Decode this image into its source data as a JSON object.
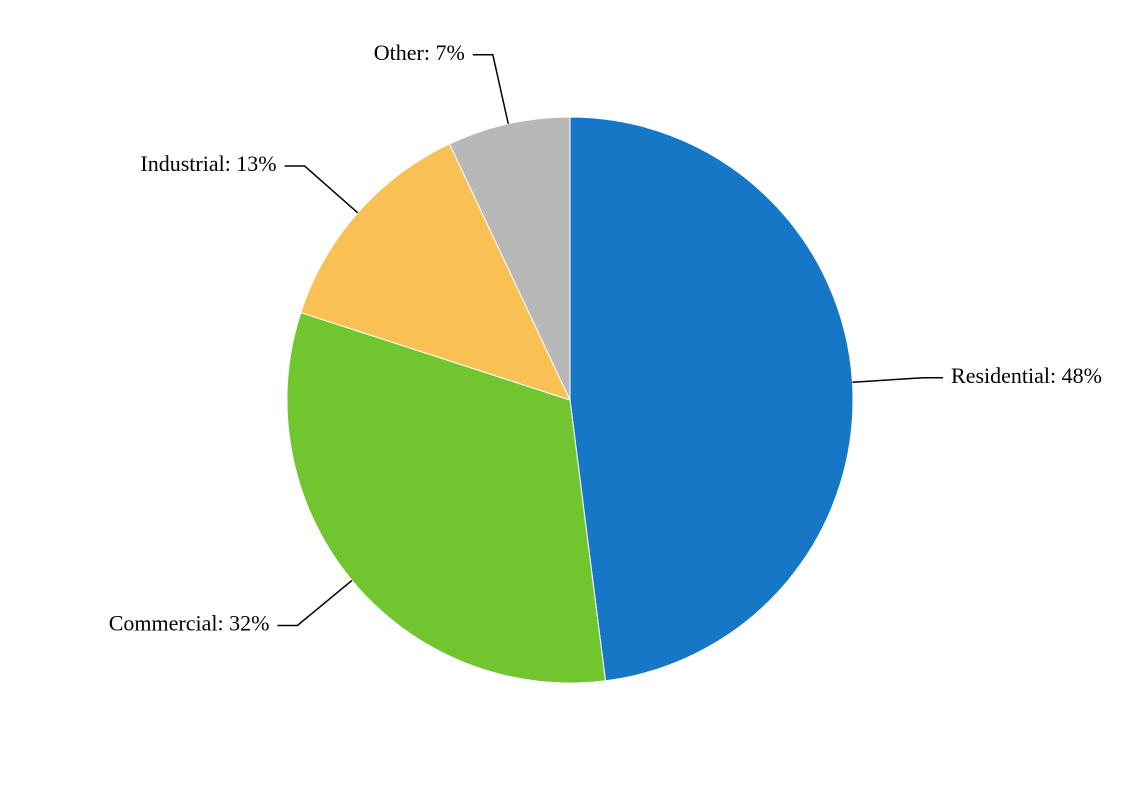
{
  "chart_data": {
    "type": "pie",
    "values": [
      48,
      32,
      13,
      7
    ],
    "value_labels": [
      "Residential: 48%",
      "Commercial: 32%",
      "Industrial: 13%",
      "Other: 7%"
    ],
    "colors": [
      "#1677c7",
      "#71c52f",
      "#f9c053",
      "#b8b8b8"
    ]
  }
}
